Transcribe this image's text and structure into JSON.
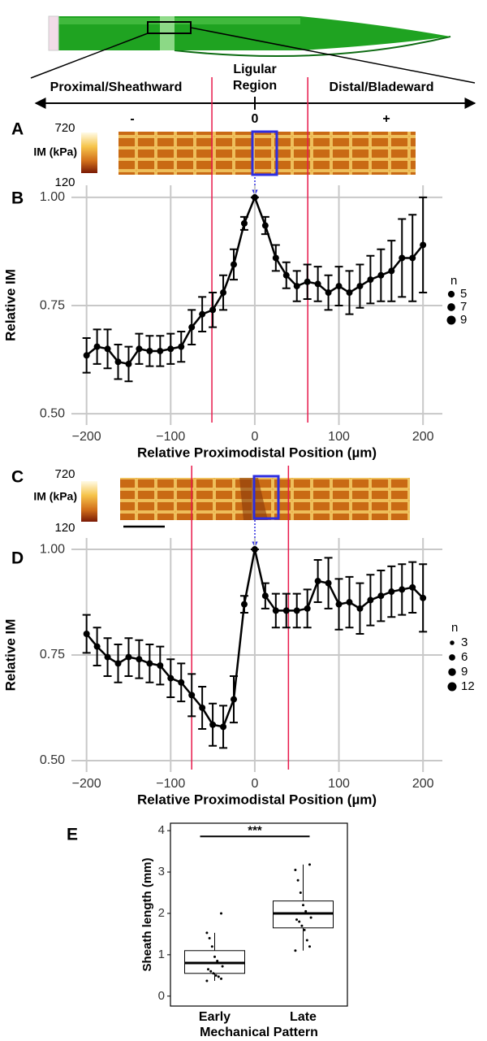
{
  "diagram": {
    "left_label": "Proximal/Sheathward",
    "center_label": "Ligular Region",
    "right_label": "Distal/Bladeward",
    "direction_labels": [
      "-",
      "0",
      "+"
    ]
  },
  "heatmaps": [
    {
      "panel": "A",
      "colorbar_label": "IM (kPa)",
      "colorbar_max": 720,
      "colorbar_min": 120
    },
    {
      "panel": "C",
      "colorbar_label": "IM (kPa)",
      "colorbar_max": 720,
      "colorbar_min": 120
    }
  ],
  "chart_data": [
    {
      "type": "line",
      "panel": "B",
      "xlabel": "Relative Proximodistal Position (µm)",
      "ylabel": "Relative IM",
      "color": "#000000",
      "x": [
        -200,
        -187.5,
        -175,
        -162.5,
        -150,
        -137.5,
        -125,
        -112.5,
        -100,
        -87.5,
        -75,
        -62.5,
        -50,
        -37.5,
        -25,
        -12.5,
        0,
        12.5,
        25,
        37.5,
        50,
        62.5,
        75,
        87.5,
        100,
        112.5,
        125,
        137.5,
        150,
        162.5,
        175,
        187.5,
        200
      ],
      "values": [
        0.635,
        0.655,
        0.65,
        0.62,
        0.615,
        0.65,
        0.645,
        0.645,
        0.65,
        0.655,
        0.7,
        0.73,
        0.74,
        0.78,
        0.845,
        0.94,
        1.0,
        0.935,
        0.86,
        0.82,
        0.795,
        0.805,
        0.8,
        0.78,
        0.795,
        0.78,
        0.795,
        0.81,
        0.82,
        0.83,
        0.86,
        0.86,
        0.89
      ],
      "errors": [
        0.04,
        0.04,
        0.045,
        0.04,
        0.04,
        0.035,
        0.035,
        0.035,
        0.035,
        0.035,
        0.04,
        0.04,
        0.04,
        0.04,
        0.035,
        0.015,
        0.0,
        0.02,
        0.03,
        0.03,
        0.035,
        0.04,
        0.04,
        0.04,
        0.045,
        0.05,
        0.05,
        0.055,
        0.06,
        0.07,
        0.09,
        0.1,
        0.11
      ],
      "xlim": [
        -218,
        223
      ],
      "ylim": [
        0.474,
        1.028
      ],
      "xticks": [
        {
          "value": -200,
          "label": "−200"
        },
        {
          "value": -100,
          "label": "−100"
        },
        0,
        100,
        200
      ],
      "yticks": [
        {
          "value": 0.5,
          "label": "0.50"
        },
        0.75,
        {
          "value": 1,
          "label": "1.00"
        }
      ],
      "grid": true,
      "vlines": [
        -51,
        63
      ],
      "vline_color": "#e8174a",
      "size_legend": {
        "title": "n",
        "values": [
          5,
          7,
          9
        ]
      }
    },
    {
      "type": "line",
      "panel": "D",
      "xlabel": "Relative Proximodistal Position (µm)",
      "ylabel": "Relative IM",
      "color": "#000000",
      "x": [
        -200,
        -187.5,
        -175,
        -162.5,
        -150,
        -137.5,
        -125,
        -112.5,
        -100,
        -87.5,
        -75,
        -62.5,
        -50,
        -37.5,
        -25,
        -12.5,
        0,
        12.5,
        25,
        37.5,
        50,
        62.5,
        75,
        87.5,
        100,
        112.5,
        125,
        137.5,
        150,
        162.5,
        175,
        187.5,
        200
      ],
      "values": [
        0.8,
        0.77,
        0.745,
        0.73,
        0.745,
        0.74,
        0.73,
        0.725,
        0.695,
        0.685,
        0.655,
        0.625,
        0.585,
        0.58,
        0.645,
        0.87,
        1.0,
        0.89,
        0.855,
        0.855,
        0.855,
        0.86,
        0.925,
        0.92,
        0.87,
        0.875,
        0.86,
        0.88,
        0.89,
        0.9,
        0.905,
        0.91,
        0.885
      ],
      "errors": [
        0.045,
        0.045,
        0.045,
        0.045,
        0.045,
        0.045,
        0.045,
        0.045,
        0.045,
        0.045,
        0.05,
        0.05,
        0.05,
        0.05,
        0.055,
        0.02,
        0.0,
        0.03,
        0.04,
        0.04,
        0.04,
        0.045,
        0.05,
        0.06,
        0.06,
        0.06,
        0.06,
        0.06,
        0.06,
        0.06,
        0.06,
        0.06,
        0.08
      ],
      "xlim": [
        -218,
        223
      ],
      "ylim": [
        0.473,
        1.027
      ],
      "xticks": [
        {
          "value": -200,
          "label": "−200"
        },
        {
          "value": -100,
          "label": "−100"
        },
        0,
        100,
        200
      ],
      "yticks": [
        {
          "value": 0.5,
          "label": "0.50"
        },
        0.75,
        {
          "value": 1,
          "label": "1.00"
        }
      ],
      "grid": true,
      "vlines": [
        -75,
        40
      ],
      "vline_color": "#e8174a",
      "size_legend": {
        "title": "n",
        "values": [
          3,
          6,
          9,
          12
        ]
      }
    },
    {
      "type": "box",
      "panel": "E",
      "ylabel": "Sheath length (mm)",
      "xlabel": "Mechanical Pattern",
      "categories": [
        "Early",
        "Late"
      ],
      "ylim": [
        -0.24,
        4.18
      ],
      "yticks": [
        0,
        1,
        2,
        3,
        4
      ],
      "boxes": [
        {
          "whisker_low": 0.37,
          "q1": 0.55,
          "median": 0.8,
          "q3": 1.1,
          "whisker_high": 1.53,
          "points": [
            0.37,
            0.42,
            0.47,
            0.5,
            0.55,
            0.6,
            0.65,
            0.72,
            0.8,
            0.85,
            0.95,
            1.2,
            1.4,
            1.53,
            2.0
          ]
        },
        {
          "whisker_low": 1.1,
          "q1": 1.65,
          "median": 2.0,
          "q3": 2.3,
          "whisker_high": 3.18,
          "points": [
            1.1,
            1.2,
            1.35,
            1.6,
            1.7,
            1.8,
            1.85,
            1.9,
            2.0,
            2.05,
            2.2,
            2.5,
            2.8,
            3.05,
            3.18
          ]
        }
      ],
      "significance": {
        "label": "***",
        "y": 3.86
      }
    }
  ]
}
